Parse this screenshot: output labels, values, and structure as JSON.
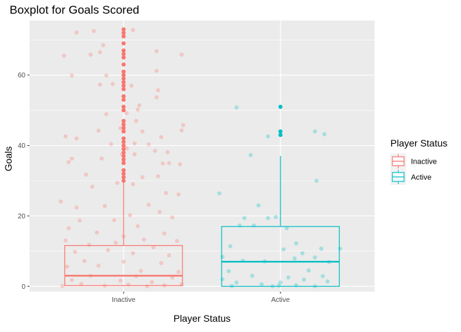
{
  "chart_data": {
    "type": "boxplot",
    "title": "Boxplot for Goals Scored",
    "xlabel": "Player Status",
    "ylabel": "Goals",
    "categories": [
      "Inactive",
      "Active"
    ],
    "ylim": [
      -1.5,
      75.5
    ],
    "yticks": [
      0,
      20,
      40,
      60
    ],
    "grid": true,
    "legend": {
      "title": "Player Status",
      "position": "right",
      "entries": [
        "Inactive",
        "Active"
      ]
    },
    "colors": {
      "Inactive": "#F8766D",
      "Active": "#00BFC4",
      "panel": "#EBEBEB",
      "grid": "#FFFFFF"
    },
    "series": [
      {
        "name": "Inactive",
        "box": {
          "whisker_low": 0,
          "q1": 0.2,
          "median": 3,
          "q3": 11.6,
          "whisker_high": 29.5
        },
        "outliers": [
          30,
          31,
          32,
          33,
          35,
          36,
          37,
          38,
          39,
          40,
          41,
          42,
          44,
          45,
          46,
          47,
          50,
          51,
          53,
          54,
          56,
          57,
          58,
          59,
          60,
          61,
          63,
          65,
          66,
          67,
          69,
          71,
          72,
          73
        ],
        "jitter_points": [
          [
            -0.3,
            72.1
          ],
          [
            -0.19,
            72.5
          ],
          [
            -0.13,
            68.5
          ],
          [
            -0.15,
            66.5
          ],
          [
            0.06,
            72.8
          ],
          [
            -0.21,
            65.8
          ],
          [
            -0.38,
            65.5
          ],
          [
            0.21,
            66.8
          ],
          [
            0.37,
            65.8
          ],
          [
            -0.07,
            57.5
          ],
          [
            -0.11,
            59.9
          ],
          [
            -0.33,
            59.9
          ],
          [
            0.05,
            57.0
          ],
          [
            0.21,
            61.2
          ],
          [
            0.22,
            55.7
          ],
          [
            -0.15,
            57.3
          ],
          [
            0.21,
            53.7
          ],
          [
            0.1,
            51.4
          ],
          [
            0.09,
            50.2
          ],
          [
            0.02,
            49.2
          ],
          [
            -0.11,
            48.9
          ],
          [
            0.08,
            47.0
          ],
          [
            -0.3,
            42.0
          ],
          [
            -0.16,
            44.2
          ],
          [
            -0.02,
            44.9
          ],
          [
            0.12,
            44.0
          ],
          [
            0.38,
            45.8
          ],
          [
            0.37,
            44.3
          ],
          [
            -0.37,
            42.6
          ],
          [
            0.24,
            42.4
          ],
          [
            -0.08,
            40.4
          ],
          [
            0.07,
            40.6
          ],
          [
            0.16,
            40.3
          ],
          [
            0.02,
            39.2
          ],
          [
            0.2,
            38.5
          ],
          [
            -0.01,
            37.5
          ],
          [
            -0.14,
            36.3
          ],
          [
            0.07,
            37.5
          ],
          [
            0.28,
            38.1
          ],
          [
            -0.35,
            35.3
          ],
          [
            -0.33,
            36.3
          ],
          [
            0.25,
            34.9
          ],
          [
            0.29,
            35.0
          ],
          [
            0.36,
            34.7
          ],
          [
            -0.24,
            31.7
          ],
          [
            0.22,
            31.3
          ],
          [
            0.06,
            29.0
          ],
          [
            -0.04,
            29.4
          ],
          [
            0.12,
            31.0
          ],
          [
            -0.4,
            24.1
          ],
          [
            -0.2,
            28.3
          ],
          [
            0.27,
            26.5
          ],
          [
            0.35,
            26.1
          ],
          [
            -0.3,
            22.4
          ],
          [
            0.16,
            23.2
          ],
          [
            0.23,
            21.1
          ],
          [
            -0.12,
            22.8
          ],
          [
            -0.06,
            18.8
          ],
          [
            0.04,
            20.2
          ],
          [
            0.31,
            19.6
          ],
          [
            -0.28,
            18.7
          ],
          [
            0.09,
            17.1
          ],
          [
            -0.35,
            16.5
          ],
          [
            -0.17,
            15.3
          ],
          [
            0.26,
            15.0
          ],
          [
            -0.37,
            13.0
          ],
          [
            0.13,
            13.3
          ],
          [
            0.0,
            14.2
          ],
          [
            0.34,
            12.9
          ],
          [
            -0.22,
            11.8
          ],
          [
            -0.05,
            12.4
          ],
          [
            0.19,
            11.1
          ],
          [
            -0.31,
            9.8
          ],
          [
            -0.1,
            10.3
          ],
          [
            0.06,
            9.4
          ],
          [
            0.29,
            8.8
          ],
          [
            -0.25,
            7.2
          ],
          [
            0.0,
            7.0
          ],
          [
            0.24,
            6.6
          ],
          [
            -0.36,
            5.6
          ],
          [
            -0.16,
            5.9
          ],
          [
            0.11,
            4.4
          ],
          [
            0.35,
            4.1
          ],
          [
            -0.21,
            3.0
          ],
          [
            0.08,
            2.9
          ],
          [
            0.31,
            2.5
          ],
          [
            -0.33,
            1.8
          ],
          [
            -0.02,
            1.6
          ],
          [
            0.18,
            1.2
          ],
          [
            -0.27,
            0.7
          ],
          [
            0.03,
            0.5
          ],
          [
            0.26,
            0.3
          ],
          [
            -0.39,
            0.1
          ],
          [
            -0.12,
            0.2
          ],
          [
            0.15,
            0.0
          ],
          [
            0.37,
            0.6
          ]
        ]
      },
      {
        "name": "Active",
        "box": {
          "whisker_low": 0,
          "q1": 0,
          "median": 7,
          "q3": 17,
          "whisker_high": 37
        },
        "outliers": [
          43,
          44,
          51
        ],
        "jitter_points": [
          [
            -0.28,
            50.8
          ],
          [
            0.22,
            44.0
          ],
          [
            -0.08,
            42.6
          ],
          [
            0.28,
            43.2
          ],
          [
            -0.19,
            37.3
          ],
          [
            0.23,
            30.0
          ],
          [
            -0.39,
            26.4
          ],
          [
            -0.14,
            23.0
          ],
          [
            -0.03,
            19.7
          ],
          [
            -0.08,
            19.4
          ],
          [
            -0.23,
            19.4
          ],
          [
            -0.17,
            17.3
          ],
          [
            -0.26,
            17.3
          ],
          [
            0.04,
            16.5
          ],
          [
            0.1,
            12.2
          ],
          [
            -0.32,
            11.4
          ],
          [
            0.26,
            10.7
          ],
          [
            0.38,
            10.7
          ],
          [
            0.02,
            10.5
          ],
          [
            0.14,
            9.4
          ],
          [
            -0.37,
            8.4
          ],
          [
            0.22,
            8.2
          ],
          [
            0.09,
            7.9
          ],
          [
            -0.24,
            7.3
          ],
          [
            -0.1,
            7.1
          ],
          [
            0.31,
            6.9
          ],
          [
            -0.33,
            4.3
          ],
          [
            0.18,
            4.5
          ],
          [
            -0.18,
            3.0
          ],
          [
            0.27,
            2.9
          ],
          [
            0.05,
            2.5
          ],
          [
            -0.37,
            2.0
          ],
          [
            0.15,
            1.9
          ],
          [
            -0.28,
            1.1
          ],
          [
            0.0,
            1.1
          ],
          [
            0.3,
            1.4
          ],
          [
            -0.12,
            0.6
          ],
          [
            0.1,
            0.3
          ],
          [
            -0.01,
            0.2
          ],
          [
            0.22,
            0.0
          ],
          [
            -0.31,
            0.1
          ],
          [
            -0.05,
            0.0
          ]
        ]
      }
    ]
  }
}
